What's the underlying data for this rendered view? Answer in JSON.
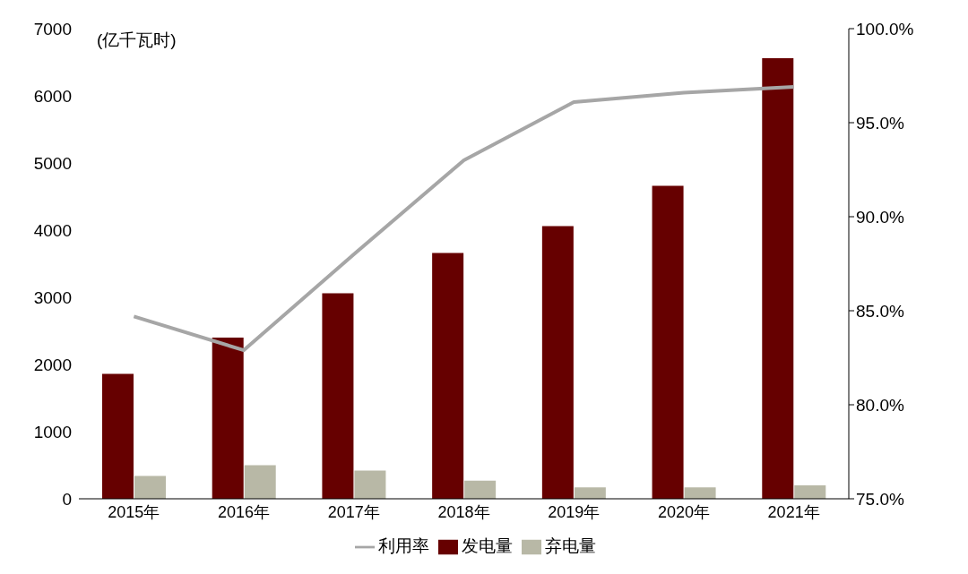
{
  "chart_data": {
    "type": "bar",
    "ylabel": "(亿千瓦时)",
    "categories": [
      "2015年",
      "2016年",
      "2017年",
      "2018年",
      "2019年",
      "2020年",
      "2021年"
    ],
    "series": [
      {
        "name": "发电量",
        "color": "#660000",
        "values": [
          1860,
          2400,
          3060,
          3660,
          4060,
          4660,
          6560
        ]
      },
      {
        "name": "弃电量",
        "color": "#b8b8a6",
        "values": [
          340,
          500,
          420,
          270,
          170,
          170,
          200
        ]
      },
      {
        "name": "利用率",
        "type": "line",
        "axis": "y2",
        "color": "#a6a6a6",
        "values": [
          84.7,
          82.9,
          88.0,
          93.0,
          96.1,
          96.6,
          96.9
        ]
      }
    ],
    "ylim": [
      0,
      7000
    ],
    "yticks": [
      0,
      1000,
      2000,
      3000,
      4000,
      5000,
      6000,
      7000
    ],
    "y2lim": [
      75,
      100
    ],
    "y2ticks": [
      {
        "value": 75,
        "label": "75.0%"
      },
      {
        "value": 80,
        "label": "80.0%"
      },
      {
        "value": 85,
        "label": "85.0%"
      },
      {
        "value": 90,
        "label": "90.0%"
      },
      {
        "value": 95,
        "label": "95.0%"
      },
      {
        "value": 100,
        "label": "100.0%"
      }
    ],
    "grid": false,
    "legend": "bottom",
    "marker": "none",
    "line_style": "solid"
  }
}
